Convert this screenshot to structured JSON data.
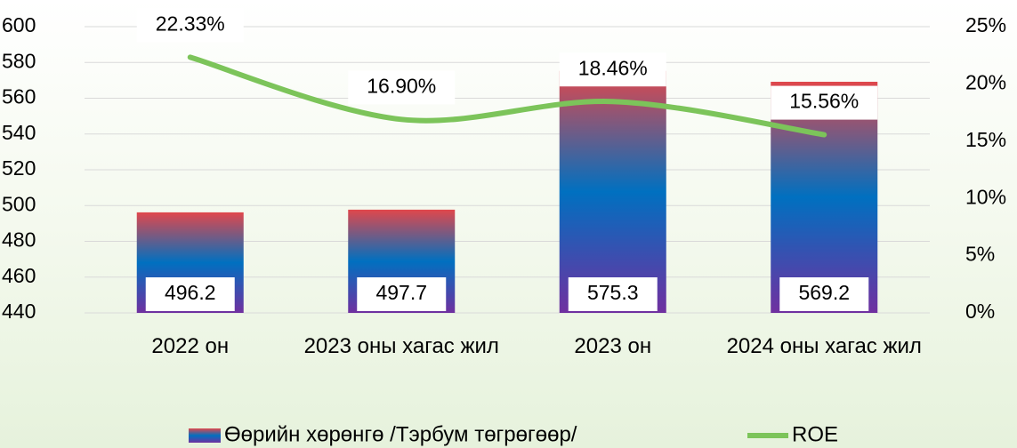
{
  "chart_data": {
    "type": "bar",
    "categories": [
      "2022 он",
      "2023 оны хагас жил",
      "2023 он",
      "2024 оны хагас жил"
    ],
    "series": [
      {
        "name": "Өөрийн хөрөнгө /Тэрбум төгрөгөөр/",
        "type": "bar",
        "colors": [
          "#e0474c",
          "#0070c0",
          "#7030a0"
        ],
        "values": [
          496.2,
          497.7,
          575.3,
          569.2
        ]
      },
      {
        "name": "ROE",
        "type": "line",
        "axis": "y2",
        "color": "#7cc45a",
        "values": [
          22.33,
          16.9,
          18.46,
          15.56
        ],
        "value_labels": [
          "22.33%",
          "16.90%",
          "18.46%",
          "15.56%"
        ]
      }
    ],
    "ylim": [
      440,
      600
    ],
    "yticks": [
      440,
      460,
      480,
      500,
      520,
      540,
      560,
      580,
      600
    ],
    "y2lim": [
      0,
      25
    ],
    "y2ticks": [
      {
        "value": 0,
        "label": "0%"
      },
      {
        "value": 5,
        "label": "5%"
      },
      {
        "value": 10,
        "label": "10%"
      },
      {
        "value": 15,
        "label": "15%"
      },
      {
        "value": 20,
        "label": "20%"
      },
      {
        "value": 25,
        "label": "25%"
      }
    ],
    "grid": true,
    "legend": "bottom"
  }
}
